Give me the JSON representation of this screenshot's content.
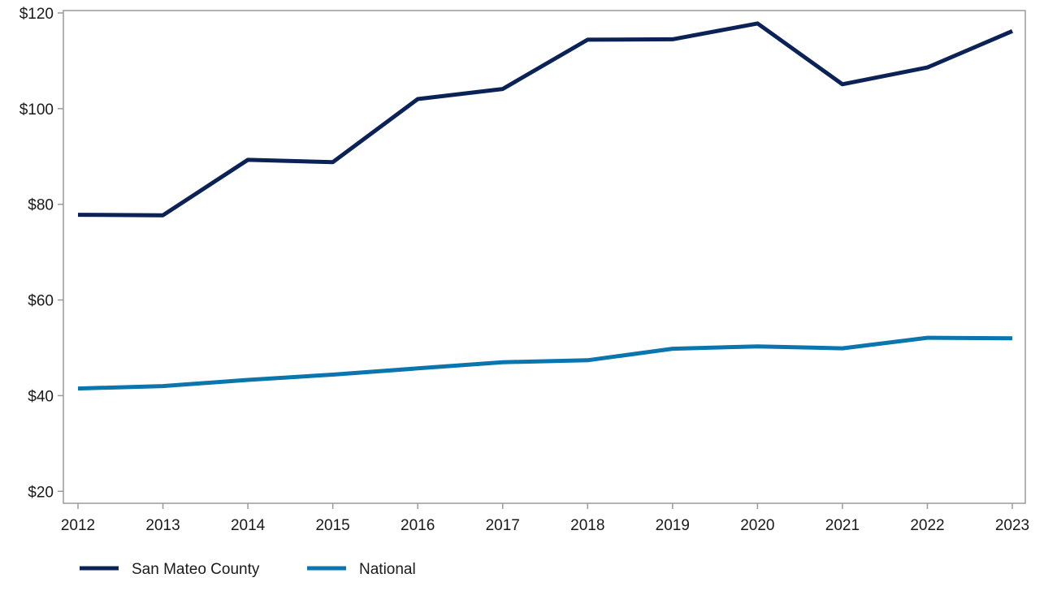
{
  "chart_data": {
    "type": "line",
    "title": "",
    "xlabel": "",
    "ylabel": "",
    "x": [
      2012,
      2013,
      2014,
      2015,
      2016,
      2017,
      2018,
      2019,
      2020,
      2021,
      2022,
      2023
    ],
    "x_tick_labels": [
      "2012",
      "2013",
      "2014",
      "2015",
      "2016",
      "2017",
      "2018",
      "2019",
      "2020",
      "2021",
      "2022",
      "2023"
    ],
    "ylim": [
      17.5,
      120.5
    ],
    "y_ticks": [
      20,
      40,
      60,
      80,
      100,
      120
    ],
    "y_tick_labels": [
      "$20",
      "$40",
      "$60",
      "$80",
      "$100",
      "$120"
    ],
    "grid": false,
    "legend_position": "bottom-left",
    "series": [
      {
        "name": "San Mateo County",
        "color": "#0b2257",
        "values": [
          77.8,
          77.7,
          89.3,
          88.8,
          102.0,
          104.1,
          114.4,
          114.5,
          117.8,
          105.1,
          108.6,
          116.2
        ]
      },
      {
        "name": "National",
        "color": "#0a76ad",
        "values": [
          41.5,
          42.0,
          43.3,
          44.4,
          45.7,
          47.0,
          47.4,
          49.8,
          50.3,
          49.9,
          52.1,
          52.0
        ]
      }
    ]
  }
}
